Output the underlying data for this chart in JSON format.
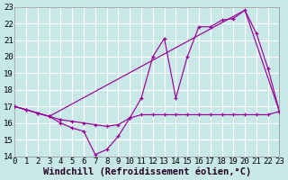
{
  "background_color": "#c8e8e8",
  "grid_color": "#ffffff",
  "line_color": "#990099",
  "xlabel": "Windchill (Refroidissement éolien,°C)",
  "xlim": [
    0,
    23
  ],
  "ylim": [
    14,
    23
  ],
  "xticks": [
    0,
    1,
    2,
    3,
    4,
    5,
    6,
    7,
    8,
    9,
    10,
    11,
    12,
    13,
    14,
    15,
    16,
    17,
    18,
    19,
    20,
    21,
    22,
    23
  ],
  "yticks": [
    14,
    15,
    16,
    17,
    18,
    19,
    20,
    21,
    22,
    23
  ],
  "line1_x": [
    0,
    1,
    2,
    3,
    4,
    5,
    6,
    7,
    8,
    9,
    10,
    11,
    12,
    13,
    14,
    15,
    16,
    17,
    18,
    19,
    20,
    21,
    22,
    23
  ],
  "line1_y": [
    17.0,
    16.8,
    16.6,
    16.4,
    16.2,
    16.1,
    16.0,
    15.9,
    15.8,
    15.9,
    16.3,
    16.5,
    16.5,
    16.5,
    16.5,
    16.5,
    16.5,
    16.5,
    16.5,
    16.5,
    16.5,
    16.5,
    16.5,
    16.7
  ],
  "line2_x": [
    0,
    1,
    2,
    3,
    4,
    5,
    6,
    7,
    8,
    9,
    10,
    11,
    12,
    13,
    14,
    15,
    16,
    17,
    18,
    19,
    20,
    21,
    22,
    23
  ],
  "line2_y": [
    17.0,
    16.8,
    16.6,
    16.4,
    16.0,
    15.7,
    15.5,
    14.1,
    14.4,
    15.2,
    16.3,
    17.5,
    20.0,
    21.1,
    17.5,
    20.0,
    21.8,
    21.8,
    22.2,
    22.3,
    22.8,
    21.4,
    19.3,
    16.7
  ],
  "line3_x": [
    0,
    3,
    20,
    23
  ],
  "line3_y": [
    17.0,
    16.4,
    22.8,
    16.7
  ],
  "tick_fontsize": 6.5,
  "xlabel_fontsize": 7.5
}
